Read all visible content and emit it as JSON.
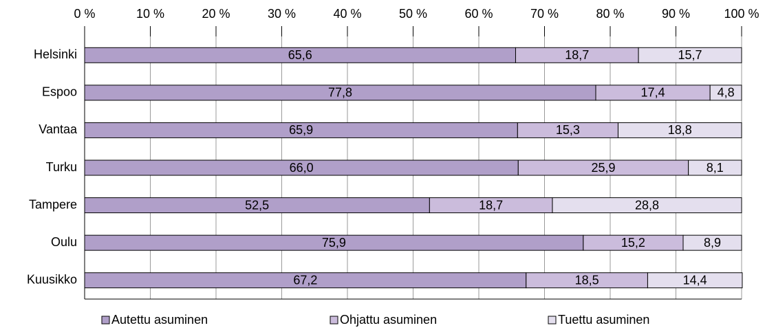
{
  "chart_data": {
    "type": "stacked_bar_horizontal",
    "categories": [
      "Helsinki",
      "Espoo",
      "Vantaa",
      "Turku",
      "Tampere",
      "Oulu",
      "Kuusikko"
    ],
    "series": [
      {
        "name": "Autettu asuminen",
        "color": "#b09fc9",
        "values": [
          65.6,
          77.8,
          65.9,
          66.0,
          52.5,
          75.9,
          67.2
        ],
        "value_labels": [
          "65,6",
          "77,8",
          "65,9",
          "66,0",
          "52,5",
          "75,9",
          "67,2"
        ]
      },
      {
        "name": "Ohjattu asuminen",
        "color": "#cbbcdc",
        "values": [
          18.7,
          17.4,
          15.3,
          25.9,
          18.7,
          15.2,
          18.5
        ],
        "value_labels": [
          "18,7",
          "17,4",
          "15,3",
          "25,9",
          "18,7",
          "15,2",
          "18,5"
        ]
      },
      {
        "name": "Tuettu asuminen",
        "color": "#e4dfee",
        "values": [
          15.7,
          4.8,
          18.8,
          8.1,
          28.8,
          8.9,
          14.4
        ],
        "value_labels": [
          "15,7",
          "4,8",
          "18,8",
          "8,1",
          "28,8",
          "8,9",
          "14,4"
        ]
      }
    ],
    "xlim": [
      0,
      100
    ],
    "xticks": [
      {
        "value": 0,
        "label": "0 %"
      },
      {
        "value": 10,
        "label": "10 %"
      },
      {
        "value": 20,
        "label": "20 %"
      },
      {
        "value": 30,
        "label": "30 %"
      },
      {
        "value": 40,
        "label": "40 %"
      },
      {
        "value": 50,
        "label": "50 %"
      },
      {
        "value": 60,
        "label": "60 %"
      },
      {
        "value": 70,
        "label": "70 %"
      },
      {
        "value": 80,
        "label": "80 %"
      },
      {
        "value": 90,
        "label": "90 %"
      },
      {
        "value": 100,
        "label": "100 %"
      }
    ],
    "grid": true,
    "legend": "bottom"
  }
}
